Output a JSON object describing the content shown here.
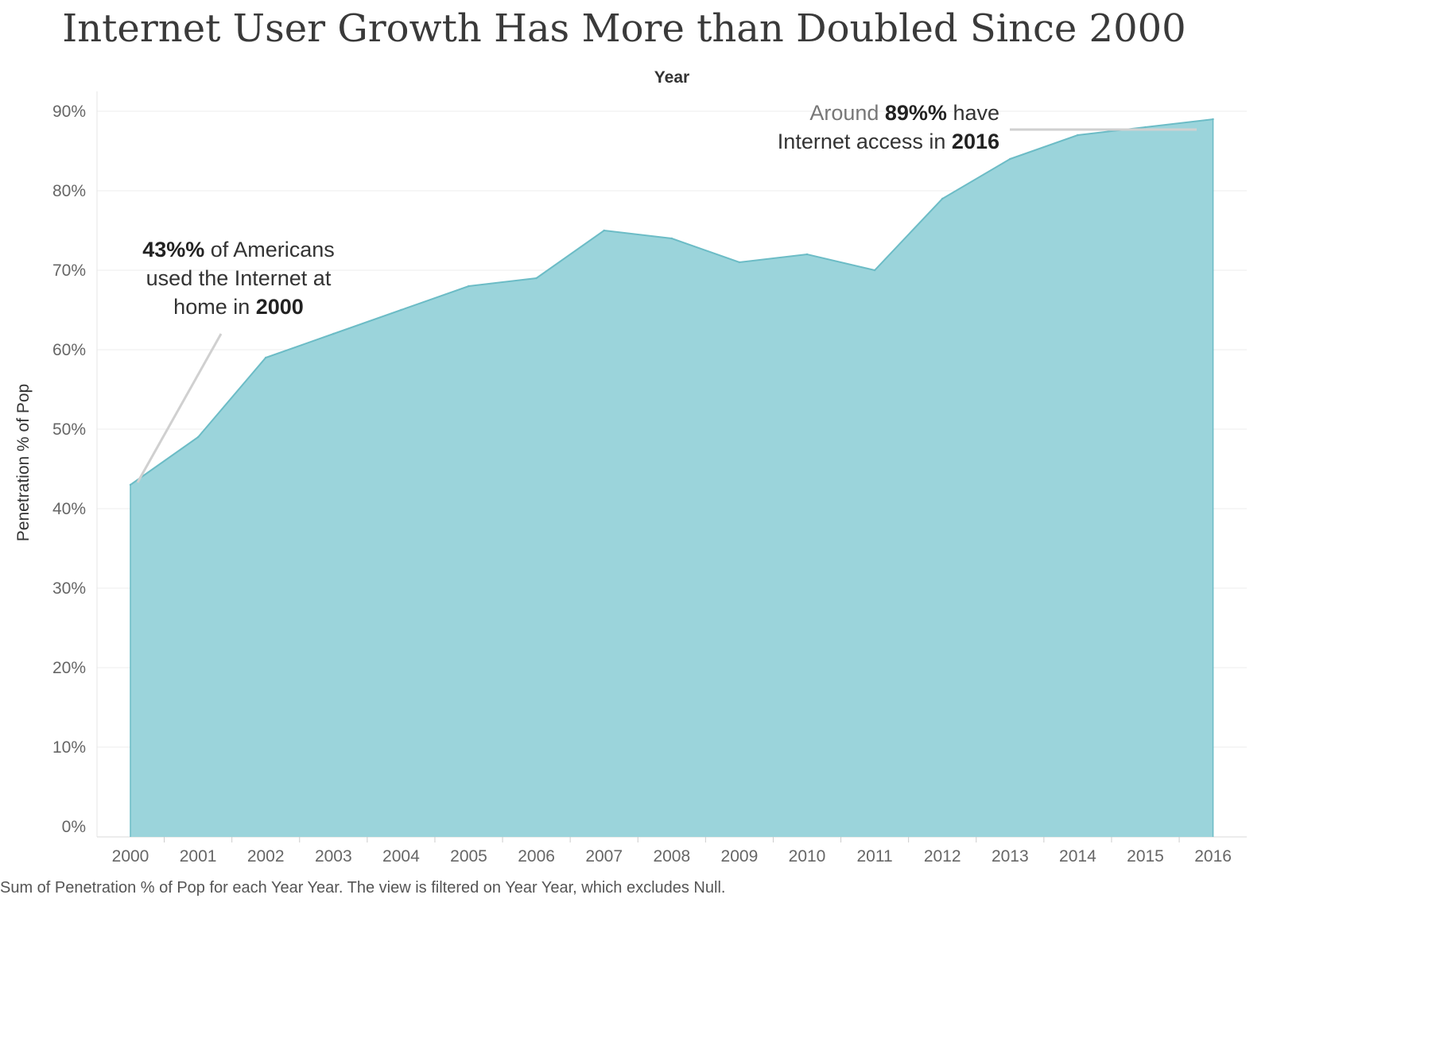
{
  "title": "Internet User Growth Has More than Doubled Since 2000",
  "colors": {
    "area_fill": "#9bd4db",
    "area_line": "#6cbcc6",
    "grid": "#ececec",
    "leader": "#d0d0d0"
  },
  "annotations": {
    "left": {
      "value": "43%%",
      "text1": " of Americans",
      "line2": "used the Internet at",
      "text3": "home in ",
      "year": "2000"
    },
    "right": {
      "prefix": "Around ",
      "value": "89%%",
      "suffix": " have",
      "text2": "Internet access in ",
      "year": "2016"
    }
  },
  "footer": "Sum of Penetration % of Pop for each Year Year.  The view is filtered on Year Year, which excludes Null.",
  "chart_data": {
    "type": "area",
    "title": "Internet User Growth Has More than Doubled Since 2000",
    "xlabel": "Year",
    "ylabel": "Penetration % of Pop",
    "x": [
      "2000",
      "2001",
      "2002",
      "2003",
      "2004",
      "2005",
      "2006",
      "2007",
      "2008",
      "2009",
      "2010",
      "2011",
      "2012",
      "2013",
      "2014",
      "2015",
      "2016"
    ],
    "series": [
      {
        "values": [
          43,
          49,
          59,
          62,
          65,
          68,
          69,
          75,
          74,
          71,
          72,
          70,
          79,
          84,
          87,
          88,
          89
        ]
      }
    ],
    "ylim": [
      0,
      90
    ],
    "yticks": [
      "0%",
      "10%",
      "20%",
      "30%",
      "40%",
      "50%",
      "60%",
      "70%",
      "80%",
      "90%"
    ],
    "grid": true,
    "legend": "none"
  }
}
